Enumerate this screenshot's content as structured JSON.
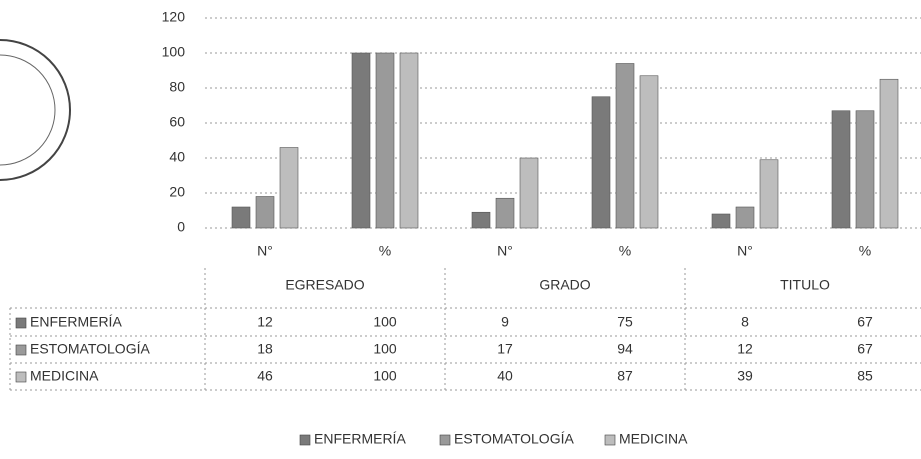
{
  "chart_data": {
    "type": "bar",
    "categories": [
      "N°",
      "%",
      "N°",
      "%",
      "N°",
      "%"
    ],
    "groups": [
      "EGRESADO",
      "GRADO",
      "TITULO"
    ],
    "series": [
      {
        "name": "ENFERMERÍA",
        "color": "#7a7a7a",
        "values": [
          12,
          100,
          9,
          75,
          8,
          67
        ]
      },
      {
        "name": "ESTOMATOLOGÍA",
        "color": "#9a9a9a",
        "values": [
          18,
          100,
          17,
          94,
          12,
          67
        ]
      },
      {
        "name": "MEDICINA",
        "color": "#bdbdbd",
        "values": [
          46,
          100,
          40,
          87,
          39,
          85
        ]
      }
    ],
    "ylim": [
      0,
      120
    ],
    "yticks": [
      0,
      20,
      40,
      60,
      80,
      100,
      120
    ],
    "grid": true
  }
}
